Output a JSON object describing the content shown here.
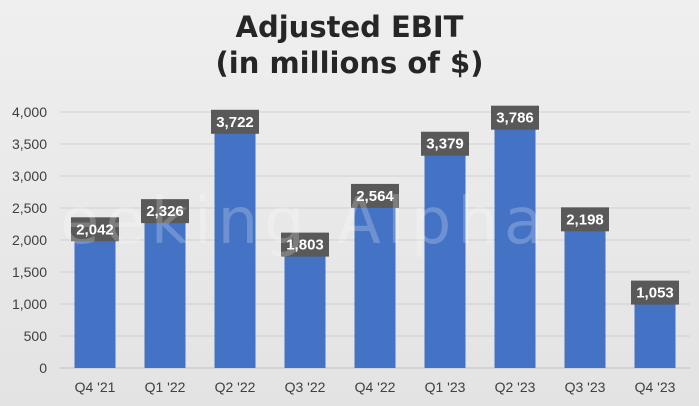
{
  "chart_data": {
    "type": "bar",
    "title_lines": [
      "Adjusted EBIT",
      "(in millions of $)"
    ],
    "categories": [
      "Q4 '21",
      "Q1 '22",
      "Q2 '22",
      "Q3 '22",
      "Q4 '22",
      "Q1 '23",
      "Q2 '23",
      "Q3 '23",
      "Q4 '23"
    ],
    "values": [
      2042,
      2326,
      3722,
      1803,
      2564,
      3379,
      3786,
      2198,
      1053
    ],
    "data_labels": [
      "2,042",
      "2,326",
      "3,722",
      "1,803",
      "2,564",
      "3,379",
      "3,786",
      "2,198",
      "1,053"
    ],
    "y_ticks": [
      0,
      500,
      1000,
      1500,
      2000,
      2500,
      3000,
      3500,
      4000
    ],
    "y_tick_labels": [
      "0",
      "500",
      "1,000",
      "1,500",
      "2,000",
      "2,500",
      "3,000",
      "3,500",
      "4,000"
    ],
    "ylim": [
      0,
      4000
    ],
    "grid": true,
    "legend": false,
    "bar_color": "#4472C4",
    "label_bg_color": "#595959",
    "label_text_color": "#ffffff"
  },
  "watermark": "eeking Alpha"
}
